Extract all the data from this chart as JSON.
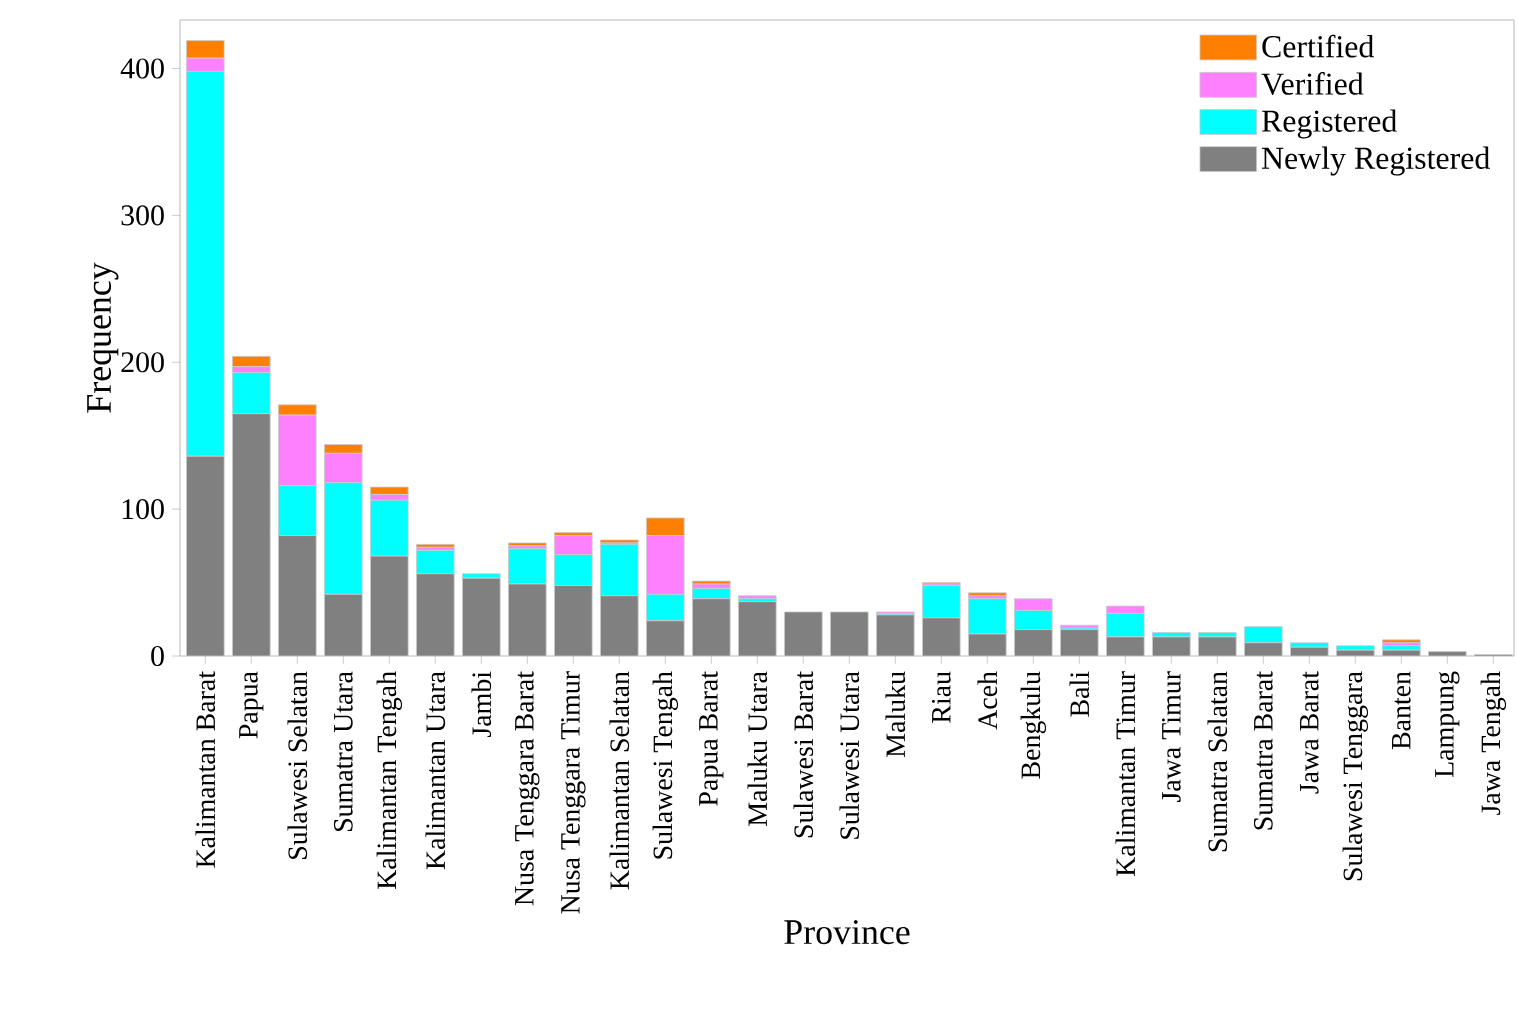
{
  "chart_data": {
    "type": "bar",
    "stacked": true,
    "xlabel": "Province",
    "ylabel": "Frequency",
    "categories": [
      "Kalimantan Barat",
      "Papua",
      "Sulawesi Selatan",
      "Sumatra Utara",
      "Kalimantan Tengah",
      "Kalimantan Utara",
      "Jambi",
      "Nusa Tenggara Barat",
      "Nusa Tenggara Timur",
      "Kalimantan Selatan",
      "Sulawesi Tengah",
      "Papua Barat",
      "Maluku Utara",
      "Sulawesi Barat",
      "Sulawesi Utara",
      "Maluku",
      "Riau",
      "Aceh",
      "Bengkulu",
      "Bali",
      "Kalimantan Timur",
      "Jawa Timur",
      "Sumatra Selatan",
      "Sumatra Barat",
      "Jawa Barat",
      "Sulawesi Tenggara",
      "Banten",
      "Lampung",
      "Jawa Tengah"
    ],
    "series": [
      {
        "name": "Newly Registered",
        "color": "#808080",
        "values": [
          136,
          165,
          82,
          42,
          68,
          56,
          53,
          49,
          48,
          41,
          24,
          39,
          37,
          30,
          30,
          28,
          26,
          15,
          18,
          18,
          13,
          13,
          13,
          9,
          6,
          4,
          4,
          3,
          1
        ]
      },
      {
        "name": "Registered",
        "color": "#00ffff",
        "values": [
          262,
          28,
          34,
          76,
          38,
          16,
          3,
          24,
          21,
          35,
          18,
          7,
          2,
          0,
          0,
          1,
          22,
          24,
          13,
          1,
          16,
          3,
          3,
          11,
          3,
          3,
          3,
          0,
          0
        ]
      },
      {
        "name": "Verified",
        "color": "#ff80ff",
        "values": [
          9,
          4,
          48,
          20,
          4,
          2,
          0,
          2,
          13,
          1,
          40,
          3,
          2,
          0,
          0,
          1,
          1,
          2,
          8,
          2,
          5,
          0,
          0,
          0,
          0,
          0,
          2,
          0,
          0
        ]
      },
      {
        "name": "Certified",
        "color": "#ff8000",
        "values": [
          12,
          7,
          7,
          6,
          5,
          2,
          0,
          2,
          2,
          2,
          12,
          2,
          0,
          0,
          0,
          0,
          1,
          2,
          0,
          0,
          0,
          0,
          0,
          0,
          0,
          0,
          2,
          0,
          0
        ]
      }
    ],
    "ylim": [
      0,
      433
    ],
    "yticks": [
      0,
      100,
      200,
      300,
      400
    ],
    "legend": "top right"
  }
}
